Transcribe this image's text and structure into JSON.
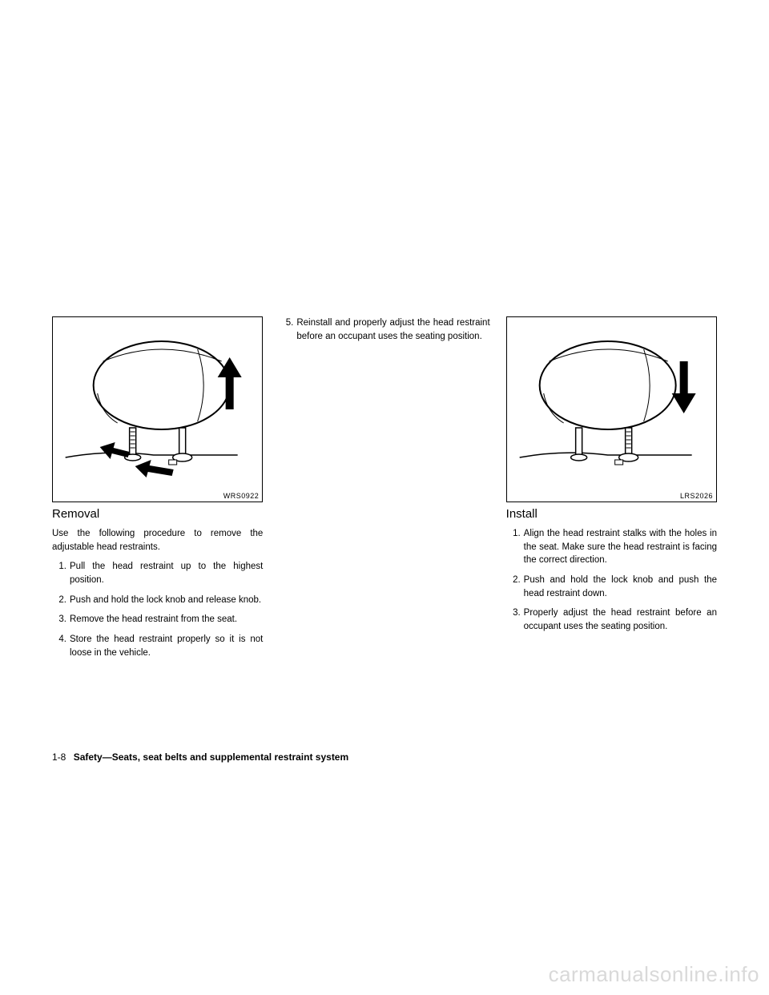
{
  "col1": {
    "figure_label": "WRS0922",
    "heading": "Removal",
    "intro": "Use the following procedure to remove the adjustable head restraints.",
    "steps": [
      "Pull the head restraint up to the highest position.",
      "Push and hold the lock knob and release knob.",
      "Remove the head restraint from the seat.",
      "Store the head restraint properly so it is not loose in the vehicle."
    ]
  },
  "col2": {
    "steps": [
      "Reinstall and properly adjust the head restraint before an occupant uses the seating position."
    ],
    "start_num": 5
  },
  "col3": {
    "figure_label": "LRS2026",
    "heading": "Install",
    "steps": [
      "Align the head restraint stalks with the holes in the seat. Make sure the head restraint is facing the correct direction.",
      "Push and hold the lock knob and push the head restraint down.",
      "Properly adjust the head restraint before an occupant uses the seating position."
    ]
  },
  "footer": {
    "page": "1-8",
    "section": "Safety—Seats, seat belts and supplemental restraint system"
  },
  "watermark": "carmanualsonline.info",
  "colors": {
    "text": "#000000",
    "bg": "#ffffff",
    "watermark": "#d9d9d9"
  }
}
